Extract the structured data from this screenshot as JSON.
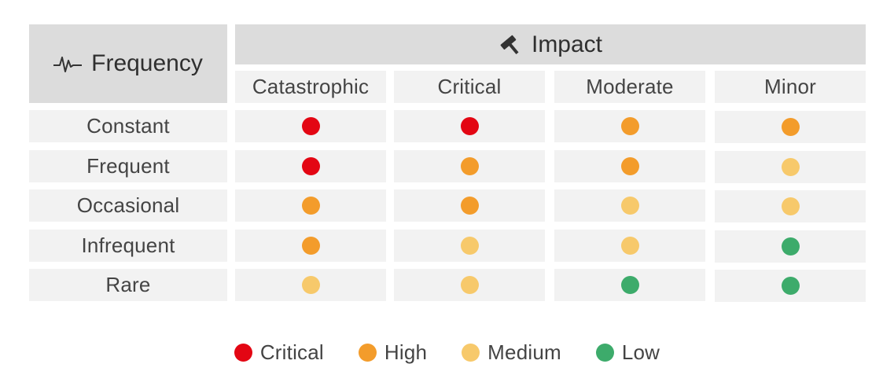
{
  "header": {
    "frequency_label": "Frequency",
    "frequency_icon": "pulse-icon",
    "impact_label": "Impact",
    "impact_icon": "hammer-icon"
  },
  "columns": [
    "Catastrophic",
    "Critical",
    "Moderate",
    "Minor"
  ],
  "rows": [
    {
      "label": "Constant",
      "levels": [
        "critical",
        "critical",
        "high",
        "high"
      ]
    },
    {
      "label": "Frequent",
      "levels": [
        "critical",
        "high",
        "high",
        "medium"
      ]
    },
    {
      "label": "Occasional",
      "levels": [
        "high",
        "high",
        "medium",
        "medium"
      ]
    },
    {
      "label": "Infrequent",
      "levels": [
        "high",
        "medium",
        "medium",
        "low"
      ]
    },
    {
      "label": "Rare",
      "levels": [
        "medium",
        "medium",
        "low",
        "low"
      ]
    }
  ],
  "legend": [
    {
      "key": "critical",
      "label": "Critical",
      "color": "#e30613"
    },
    {
      "key": "high",
      "label": "High",
      "color": "#f39c2b"
    },
    {
      "key": "medium",
      "label": "Medium",
      "color": "#f7c96b"
    },
    {
      "key": "low",
      "label": "Low",
      "color": "#3dab6b"
    }
  ]
}
